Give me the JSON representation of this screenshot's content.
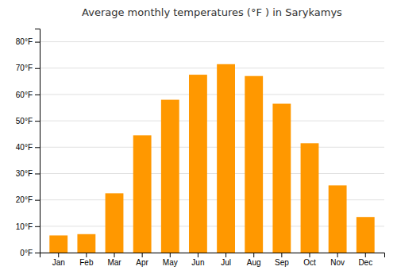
{
  "chart_data": {
    "type": "bar",
    "title": "Average monthly temperatures (°F ) in Sarykamys",
    "categories": [
      "Jan",
      "Feb",
      "Mar",
      "Apr",
      "May",
      "Jun",
      "Jul",
      "Aug",
      "Sep",
      "Oct",
      "Nov",
      "Dec"
    ],
    "values": [
      6.5,
      7.0,
      22.5,
      44.5,
      58.0,
      67.5,
      71.5,
      67.0,
      56.5,
      41.5,
      25.5,
      13.5
    ],
    "color": "#FF9800",
    "ylim": [
      0,
      85
    ],
    "yticks": [
      {
        "value": 0,
        "label": "0°F"
      },
      {
        "value": 10,
        "label": "10°F"
      },
      {
        "value": 20,
        "label": "20°F"
      },
      {
        "value": 30,
        "label": "30°F"
      },
      {
        "value": 40,
        "label": "40°F"
      },
      {
        "value": 50,
        "label": "50°F"
      },
      {
        "value": 60,
        "label": "60°F"
      },
      {
        "value": 70,
        "label": "70°F"
      },
      {
        "value": 80,
        "label": "80°F"
      }
    ],
    "grid": true
  }
}
